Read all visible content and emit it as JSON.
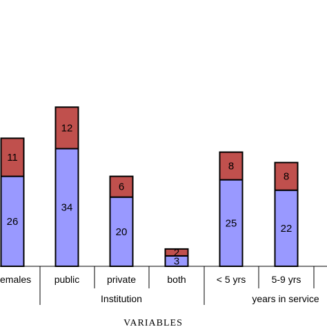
{
  "chart_data": {
    "type": "bar",
    "stacked": true,
    "categories": [
      "females",
      "public",
      "private",
      "both",
      "< 5 yrs",
      "5-9 yrs"
    ],
    "category_labels": [
      "emales",
      "public",
      "private",
      "both",
      "< 5 yrs",
      "5-9 yrs"
    ],
    "groups": [
      {
        "label": "Institution",
        "categories": [
          "public",
          "private",
          "both"
        ]
      },
      {
        "label": "years in service",
        "categories": [
          "< 5 yrs",
          "5-9 yrs"
        ]
      }
    ],
    "series": [
      {
        "values": [
          26,
          34,
          20,
          3,
          25,
          22
        ],
        "color": "#9999ff"
      },
      {
        "values": [
          11,
          12,
          6,
          2,
          8,
          8
        ],
        "color": "#c0504d"
      }
    ],
    "xlabel": "VARIABLES",
    "ylabel": "",
    "ylim": [
      0,
      50
    ],
    "grid": false,
    "legend": "none"
  }
}
